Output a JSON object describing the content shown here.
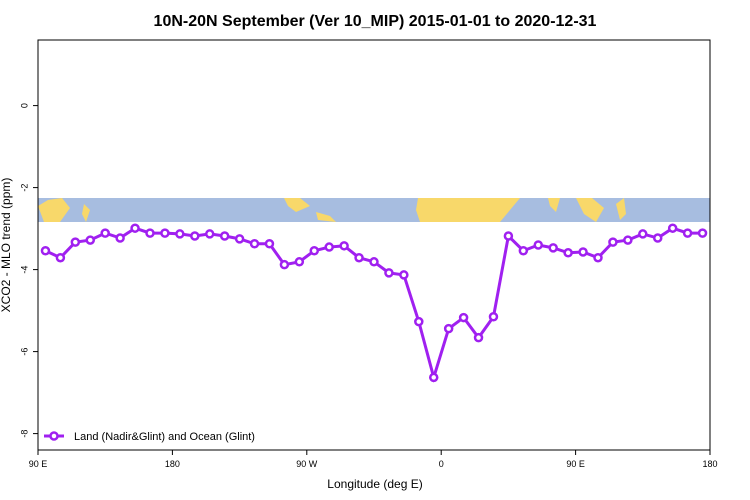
{
  "chart_data": {
    "type": "line",
    "title": "10N-20N September (Ver 10_MIP)   2015-01-01 to 2020-12-31",
    "x_label": "Longitude (deg E)",
    "y_label": "XCO2 - MLO trend (ppm)",
    "x": [
      95,
      105,
      115,
      125,
      135,
      145,
      155,
      165,
      175,
      185,
      195,
      205,
      215,
      225,
      235,
      245,
      255,
      265,
      275,
      285,
      295,
      305,
      315,
      325,
      335,
      345,
      355,
      365,
      375,
      385,
      395,
      405,
      415,
      425,
      435,
      445,
      455,
      465,
      475,
      485,
      495,
      505,
      515,
      525,
      535
    ],
    "series": [
      {
        "name": "Land (Nadir&Glint) and Ocean (Glint)",
        "color": "#a020f0",
        "values": [
          -3.54,
          -3.71,
          -3.33,
          -3.28,
          -3.11,
          -3.23,
          -2.99,
          -3.11,
          -3.11,
          -3.13,
          -3.18,
          -3.13,
          -3.18,
          -3.25,
          -3.37,
          -3.37,
          -3.88,
          -3.81,
          -3.54,
          -3.45,
          -3.42,
          -3.71,
          -3.81,
          -4.08,
          -4.13,
          -5.27,
          -6.63,
          -5.44,
          -5.17,
          -5.66,
          -5.15,
          -3.18,
          -3.54,
          -3.4,
          -3.47,
          -3.59,
          -3.57,
          -3.71,
          -3.33,
          -3.28,
          -3.13,
          -3.23,
          -2.99,
          -3.11,
          -3.11
        ]
      }
    ],
    "xlim": [
      90,
      540
    ],
    "xticks": [
      {
        "value": 90,
        "label": "90 E"
      },
      {
        "value": 180,
        "label": "180"
      },
      {
        "value": 270,
        "label": "90 W"
      },
      {
        "value": 360,
        "label": "0"
      },
      {
        "value": 450,
        "label": "90 E"
      },
      {
        "value": 540,
        "label": "180"
      }
    ],
    "ylim": [
      -8.4,
      1.6
    ],
    "yticks": [
      0,
      -2,
      -4,
      -6,
      -8
    ],
    "legend": "bottom-left"
  }
}
